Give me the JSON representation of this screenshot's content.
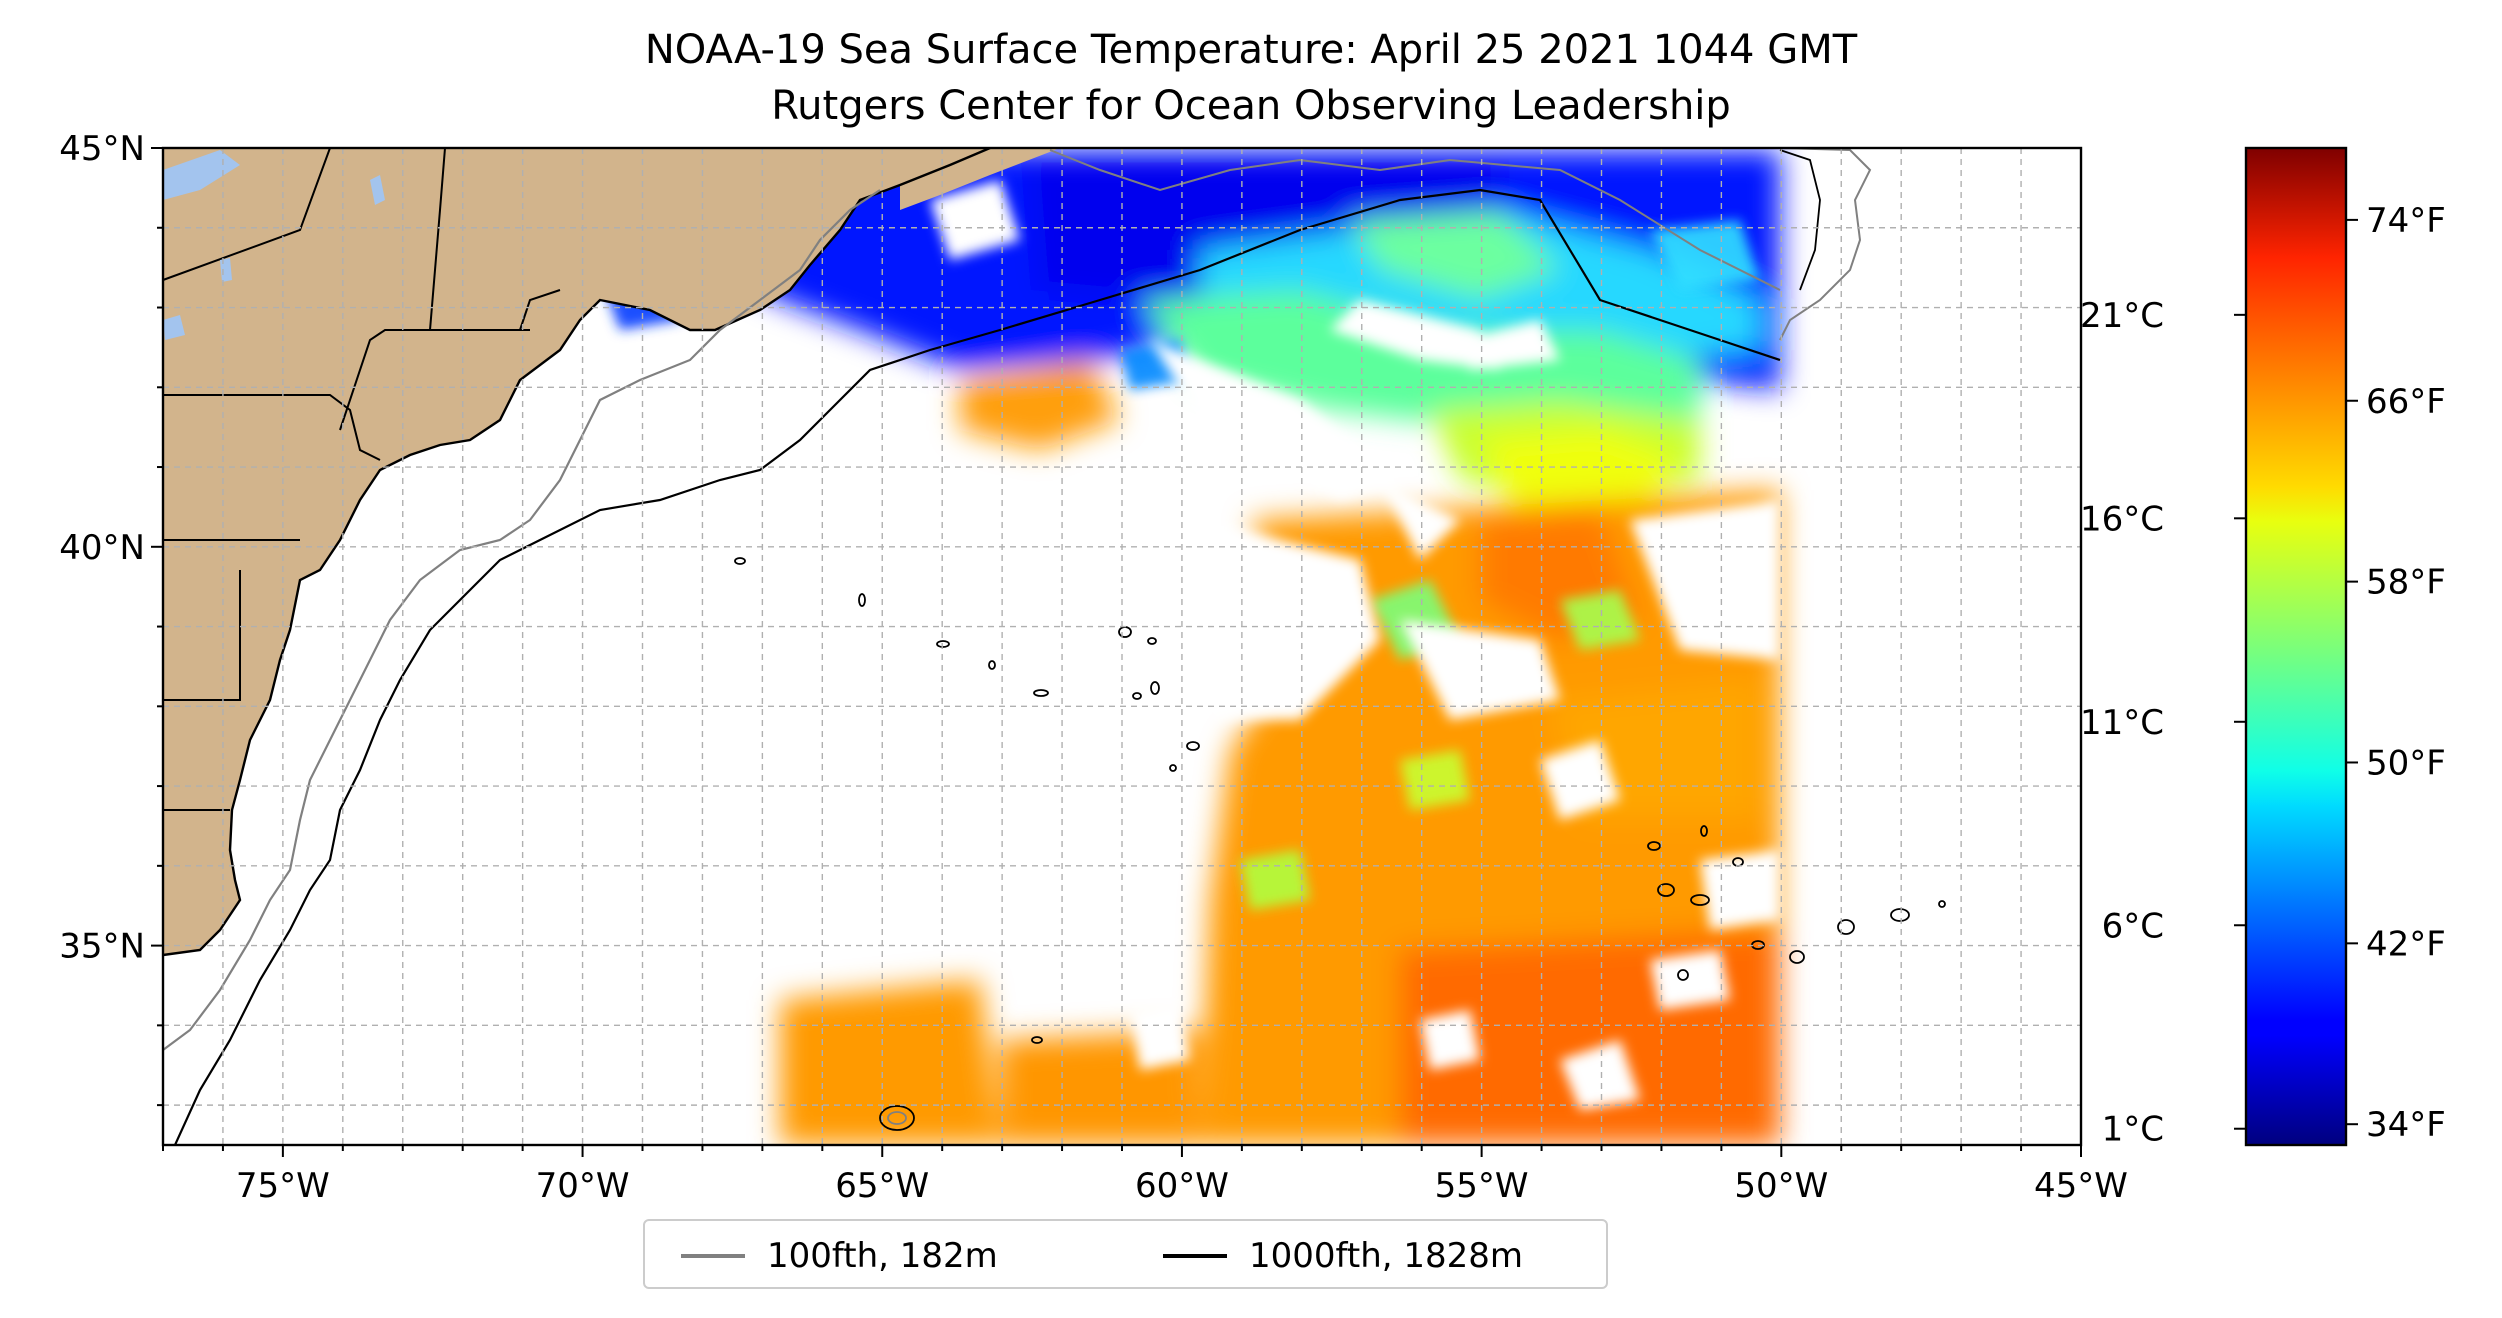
{
  "title": {
    "line1": "NOAA-19 Sea Surface Temperature: April 25 2021 1044 GMT",
    "line2": "Rutgers Center for Ocean Observing Leadership"
  },
  "map": {
    "extent": {
      "lon_min": -77,
      "lon_max": -45,
      "lat_min": 32.5,
      "lat_max": 45
    },
    "lon_ticks": [
      {
        "value": -75,
        "label": "75°W"
      },
      {
        "value": -70,
        "label": "70°W"
      },
      {
        "value": -65,
        "label": "65°W"
      },
      {
        "value": -60,
        "label": "60°W"
      },
      {
        "value": -55,
        "label": "55°W"
      },
      {
        "value": -50,
        "label": "50°W"
      },
      {
        "value": -45,
        "label": "45°W"
      }
    ],
    "lat_ticks": [
      {
        "value": 45,
        "label": "45°N"
      },
      {
        "value": 40,
        "label": "40°N"
      },
      {
        "value": 35,
        "label": "35°N"
      }
    ],
    "gridlines": "on, 1° dashed",
    "land_color": "#d2b48c",
    "lake_color": "#a3c4ee",
    "data_extent_east_lon": -50
  },
  "legend": {
    "items": [
      {
        "label": "100fth, 182m",
        "color": "#808080"
      },
      {
        "label": "1000fth, 1828m",
        "color": "#000000"
      }
    ]
  },
  "colorbar": {
    "colormap": "jet",
    "range_c": [
      0.6,
      25.1
    ],
    "celsius_ticks": [
      {
        "value": 1,
        "label": "1°C"
      },
      {
        "value": 6,
        "label": "6°C"
      },
      {
        "value": 11,
        "label": "11°C"
      },
      {
        "value": 16,
        "label": "16°C"
      },
      {
        "value": 21,
        "label": "21°C"
      }
    ],
    "fahrenheit_ticks": [
      {
        "value": 34,
        "label": "34°F"
      },
      {
        "value": 42,
        "label": "42°F"
      },
      {
        "value": 50,
        "label": "50°F"
      },
      {
        "value": 58,
        "label": "58°F"
      },
      {
        "value": 66,
        "label": "66°F"
      },
      {
        "value": 74,
        "label": "74°F"
      }
    ]
  }
}
